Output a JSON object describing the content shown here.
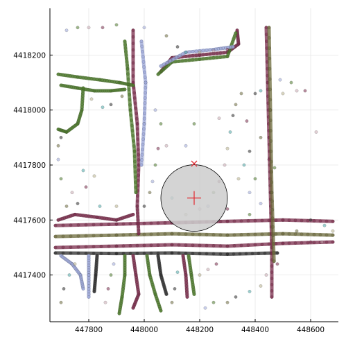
{
  "chart_data": {
    "type": "scatter",
    "title": "",
    "xlabel": "",
    "ylabel": "",
    "xlim": [
      447660,
      448700
    ],
    "ylim": [
      4417230,
      4418370
    ],
    "grid": true,
    "legend": "none",
    "x_ticks": [
      447800,
      448000,
      448200,
      448400,
      448600
    ],
    "y_ticks": [
      4417400,
      4417600,
      4417800,
      4418000,
      4418200
    ],
    "x_tick_labels": [
      "447800",
      "448000",
      "448200",
      "448400",
      "448600"
    ],
    "y_tick_labels": [
      "4417400",
      "4417600",
      "4417800",
      "4418000",
      "4418200"
    ],
    "series_colors": [
      "#c8a7b0",
      "#7a2a4a",
      "#4c7a2a",
      "#9aa6d8",
      "#6b6a3a",
      "#2a2a2a",
      "#4aa8a8",
      "#b8b08a"
    ],
    "tracks": [
      {
        "color": "#7a2a4a",
        "points": [
          [
            447680,
            4417580
          ],
          [
            447900,
            4417585
          ],
          [
            448100,
            4417590
          ],
          [
            448300,
            4417595
          ],
          [
            448500,
            4417600
          ],
          [
            448680,
            4417595
          ]
        ]
      },
      {
        "color": "#6b6a3a",
        "points": [
          [
            447680,
            4417540
          ],
          [
            447900,
            4417545
          ],
          [
            448100,
            4417550
          ],
          [
            448300,
            4417545
          ],
          [
            448500,
            4417550
          ],
          [
            448680,
            4417545
          ]
        ]
      },
      {
        "color": "#7a2a4a",
        "points": [
          [
            447680,
            4417500
          ],
          [
            447900,
            4417505
          ],
          [
            448100,
            4417510
          ],
          [
            448300,
            4417505
          ],
          [
            448500,
            4417515
          ],
          [
            448680,
            4417520
          ]
        ]
      },
      {
        "color": "#2a2a2a",
        "points": [
          [
            447680,
            4417480
          ],
          [
            447900,
            4417478
          ],
          [
            448100,
            4417480
          ],
          [
            448300,
            4417476
          ],
          [
            448480,
            4417480
          ]
        ]
      },
      {
        "color": "#7a2a4a",
        "points": [
          [
            448440,
            4418300
          ],
          [
            448445,
            4418100
          ],
          [
            448450,
            4417900
          ],
          [
            448455,
            4417700
          ],
          [
            448460,
            4417500
          ],
          [
            448460,
            4417320
          ]
        ]
      },
      {
        "color": "#6b6a3a",
        "points": [
          [
            448450,
            4418300
          ],
          [
            448455,
            4418000
          ],
          [
            448460,
            4417700
          ],
          [
            448468,
            4417450
          ]
        ]
      },
      {
        "color": "#7a2a4a",
        "points": [
          [
            447960,
            4418290
          ],
          [
            447960,
            4418100
          ],
          [
            447975,
            4417950
          ],
          [
            447980,
            4417800
          ],
          [
            447975,
            4417650
          ],
          [
            447980,
            4417550
          ]
        ]
      },
      {
        "color": "#4c7a2a",
        "points": [
          [
            447930,
            4418250
          ],
          [
            447940,
            4418150
          ],
          [
            447950,
            4418000
          ],
          [
            447965,
            4417850
          ],
          [
            447970,
            4417700
          ]
        ]
      },
      {
        "color": "#9aa6d8",
        "points": [
          [
            447990,
            4418250
          ],
          [
            448005,
            4418100
          ],
          [
            448000,
            4417950
          ],
          [
            447990,
            4417800
          ]
        ]
      },
      {
        "color": "#4c7a2a",
        "points": [
          [
            447690,
            4418130
          ],
          [
            447760,
            4418120
          ],
          [
            447840,
            4418110
          ],
          [
            447910,
            4418100
          ],
          [
            447960,
            4418090
          ]
        ]
      },
      {
        "color": "#4c7a2a",
        "points": [
          [
            447700,
            4418090
          ],
          [
            447760,
            4418080
          ],
          [
            447820,
            4418070
          ],
          [
            447880,
            4418070
          ],
          [
            447930,
            4418075
          ]
        ]
      },
      {
        "color": "#4c7a2a",
        "points": [
          [
            447780,
            4418080
          ],
          [
            447775,
            4418000
          ],
          [
            447760,
            4417950
          ],
          [
            447720,
            4417920
          ],
          [
            447690,
            4417930
          ]
        ]
      },
      {
        "color": "#7a2a4a",
        "points": [
          [
            448060,
            4418140
          ],
          [
            448100,
            4418190
          ],
          [
            448200,
            4418200
          ],
          [
            448300,
            4418210
          ],
          [
            448340,
            4418240
          ],
          [
            448335,
            4418290
          ]
        ]
      },
      {
        "color": "#4c7a2a",
        "points": [
          [
            448050,
            4418130
          ],
          [
            448100,
            4418175
          ],
          [
            448200,
            4418185
          ],
          [
            448300,
            4418195
          ],
          [
            448330,
            4418280
          ]
        ]
      },
      {
        "color": "#9aa6d8",
        "points": [
          [
            448060,
            4418160
          ],
          [
            448150,
            4418210
          ],
          [
            448250,
            4418220
          ],
          [
            448320,
            4418230
          ]
        ]
      },
      {
        "color": "#7a2a4a",
        "points": [
          [
            447690,
            4417600
          ],
          [
            447750,
            4417620
          ],
          [
            447830,
            4417610
          ],
          [
            447900,
            4417600
          ],
          [
            447960,
            4417620
          ]
        ]
      },
      {
        "color": "#4c7a2a",
        "points": [
          [
            447930,
            4417470
          ],
          [
            447930,
            4417400
          ],
          [
            447920,
            4417320
          ],
          [
            447910,
            4417260
          ]
        ]
      },
      {
        "color": "#7a2a4a",
        "points": [
          [
            447960,
            4417470
          ],
          [
            447970,
            4417400
          ],
          [
            447980,
            4417330
          ],
          [
            447960,
            4417280
          ]
        ]
      },
      {
        "color": "#4c7a2a",
        "points": [
          [
            448010,
            4417470
          ],
          [
            448020,
            4417400
          ],
          [
            448040,
            4417330
          ],
          [
            448060,
            4417270
          ]
        ]
      },
      {
        "color": "#2a2a2a",
        "points": [
          [
            448050,
            4417470
          ],
          [
            448060,
            4417400
          ],
          [
            448080,
            4417330
          ]
        ]
      },
      {
        "color": "#9aa6d8",
        "points": [
          [
            447800,
            4417470
          ],
          [
            447800,
            4417400
          ],
          [
            447800,
            4417320
          ]
        ]
      },
      {
        "color": "#2a2a2a",
        "points": [
          [
            447830,
            4417470
          ],
          [
            447825,
            4417400
          ],
          [
            447820,
            4417340
          ]
        ]
      },
      {
        "color": "#7a2a4a",
        "points": [
          [
            448140,
            4417470
          ],
          [
            448150,
            4417400
          ],
          [
            448155,
            4417320
          ]
        ]
      },
      {
        "color": "#4c7a2a",
        "points": [
          [
            448160,
            4417470
          ],
          [
            448170,
            4417400
          ],
          [
            448180,
            4417330
          ]
        ]
      },
      {
        "color": "#9aa6d8",
        "points": [
          [
            447700,
            4417470
          ],
          [
            447740,
            4417440
          ],
          [
            447770,
            4417400
          ],
          [
            447780,
            4417350
          ]
        ]
      }
    ],
    "scatter_points": [
      [
        447800,
        4418300
      ],
      [
        447850,
        4418300
      ],
      [
        447900,
        4418310
      ],
      [
        448000,
        4418300
      ],
      [
        448080,
        4418270
      ],
      [
        448120,
        4418230
      ],
      [
        448150,
        4418210
      ],
      [
        448200,
        4418210
      ],
      [
        448250,
        4418215
      ],
      [
        448300,
        4418220
      ],
      [
        447760,
        4418300
      ],
      [
        447720,
        4418290
      ],
      [
        448350,
        4418060
      ],
      [
        448400,
        4418060
      ],
      [
        448420,
        4418070
      ],
      [
        448500,
        4418060
      ],
      [
        448550,
        4418070
      ],
      [
        448580,
        4418070
      ],
      [
        448530,
        4418100
      ],
      [
        448490,
        4418110
      ],
      [
        448330,
        4418020
      ],
      [
        448320,
        4417980
      ],
      [
        448310,
        4417920
      ],
      [
        448300,
        4417860
      ],
      [
        448290,
        4417800
      ],
      [
        448270,
        4417740
      ],
      [
        448250,
        4417700
      ],
      [
        448230,
        4417650
      ],
      [
        448420,
        4417900
      ],
      [
        448380,
        4417850
      ],
      [
        448360,
        4417800
      ],
      [
        448340,
        4417750
      ],
      [
        448620,
        4417920
      ],
      [
        448370,
        4417960
      ],
      [
        448180,
        4417950
      ],
      [
        448150,
        4417870
      ],
      [
        447720,
        4417650
      ],
      [
        447760,
        4417660
      ],
      [
        447840,
        4417650
      ],
      [
        447900,
        4417650
      ],
      [
        447740,
        4417700
      ],
      [
        447790,
        4417720
      ],
      [
        447700,
        4417750
      ],
      [
        447690,
        4417820
      ],
      [
        447690,
        4417870
      ],
      [
        447700,
        4417900
      ],
      [
        447780,
        4417780
      ],
      [
        447820,
        4417760
      ],
      [
        448080,
        4417870
      ],
      [
        448050,
        4417860
      ],
      [
        448040,
        4417800
      ],
      [
        448030,
        4417740
      ],
      [
        448020,
        4417700
      ],
      [
        448000,
        4417650
      ],
      [
        448100,
        4417680
      ],
      [
        448150,
        4417620
      ],
      [
        448200,
        4417640
      ],
      [
        448300,
        4417640
      ],
      [
        448380,
        4417620
      ],
      [
        448420,
        4417660
      ],
      [
        448300,
        4417300
      ],
      [
        448330,
        4417320
      ],
      [
        448380,
        4417340
      ],
      [
        448420,
        4417360
      ],
      [
        448440,
        4417400
      ],
      [
        448480,
        4417440
      ],
      [
        448250,
        4417300
      ],
      [
        448220,
        4417280
      ],
      [
        447700,
        4417300
      ],
      [
        447710,
        4417350
      ],
      [
        447730,
        4417400
      ],
      [
        447750,
        4417440
      ],
      [
        447860,
        4417300
      ],
      [
        447870,
        4417350
      ],
      [
        447880,
        4417400
      ],
      [
        447890,
        4417440
      ],
      [
        448100,
        4417300
      ],
      [
        448110,
        4417350
      ],
      [
        448120,
        4417410
      ],
      [
        448200,
        4417400
      ],
      [
        448230,
        4417420
      ],
      [
        448260,
        4417440
      ],
      [
        448400,
        4417750
      ],
      [
        448380,
        4417700
      ],
      [
        448550,
        4417560
      ],
      [
        448600,
        4417600
      ],
      [
        448650,
        4417580
      ],
      [
        448680,
        4417560
      ],
      [
        448640,
        4417520
      ],
      [
        448600,
        4417520
      ],
      [
        448060,
        4417950
      ],
      [
        448040,
        4418000
      ],
      [
        447920,
        4418050
      ],
      [
        447880,
        4418020
      ],
      [
        447850,
        4418010
      ],
      [
        447810,
        4418040
      ],
      [
        448270,
        4417970
      ],
      [
        448450,
        4417820
      ],
      [
        448470,
        4417790
      ]
    ],
    "circle": {
      "center": [
        448180,
        4417680
      ],
      "radius": 120,
      "fill": "#cccccc",
      "stroke": "#000000"
    },
    "plus_marker": {
      "point": [
        448180,
        4417680
      ],
      "color": "#e0333a"
    },
    "x_marker": {
      "point": [
        448180,
        4417805
      ],
      "color": "#e0333a"
    }
  }
}
